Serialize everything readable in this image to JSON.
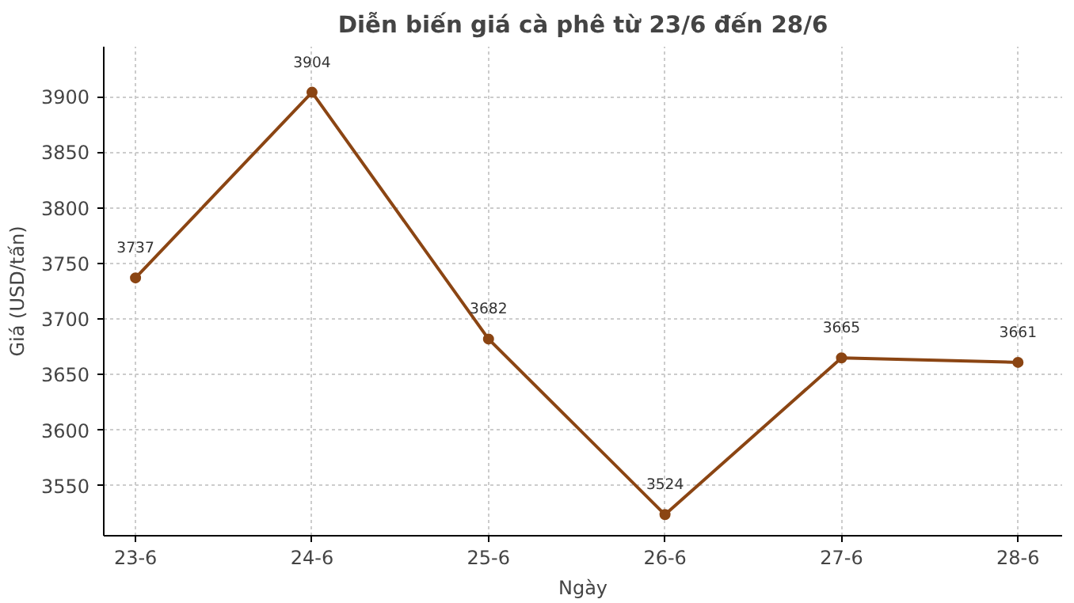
{
  "chart_data": {
    "type": "line",
    "title": "Diễn biến giá cà phê từ 23/6 đến 28/6",
    "xlabel": "Ngày",
    "ylabel": "Giá (USD/tấn)",
    "categories": [
      "23-6",
      "24-6",
      "25-6",
      "26-6",
      "27-6",
      "28-6"
    ],
    "series": [
      {
        "color": "#8b4513",
        "values": [
          3737,
          3904,
          3682,
          3524,
          3665,
          3661
        ]
      }
    ],
    "ylim": [
      3505,
      3945
    ],
    "yticks": [
      3550,
      3600,
      3650,
      3700,
      3750,
      3800,
      3850,
      3900
    ],
    "grid": true,
    "marker": "circle",
    "line_style": "solid",
    "data_labels": true
  }
}
